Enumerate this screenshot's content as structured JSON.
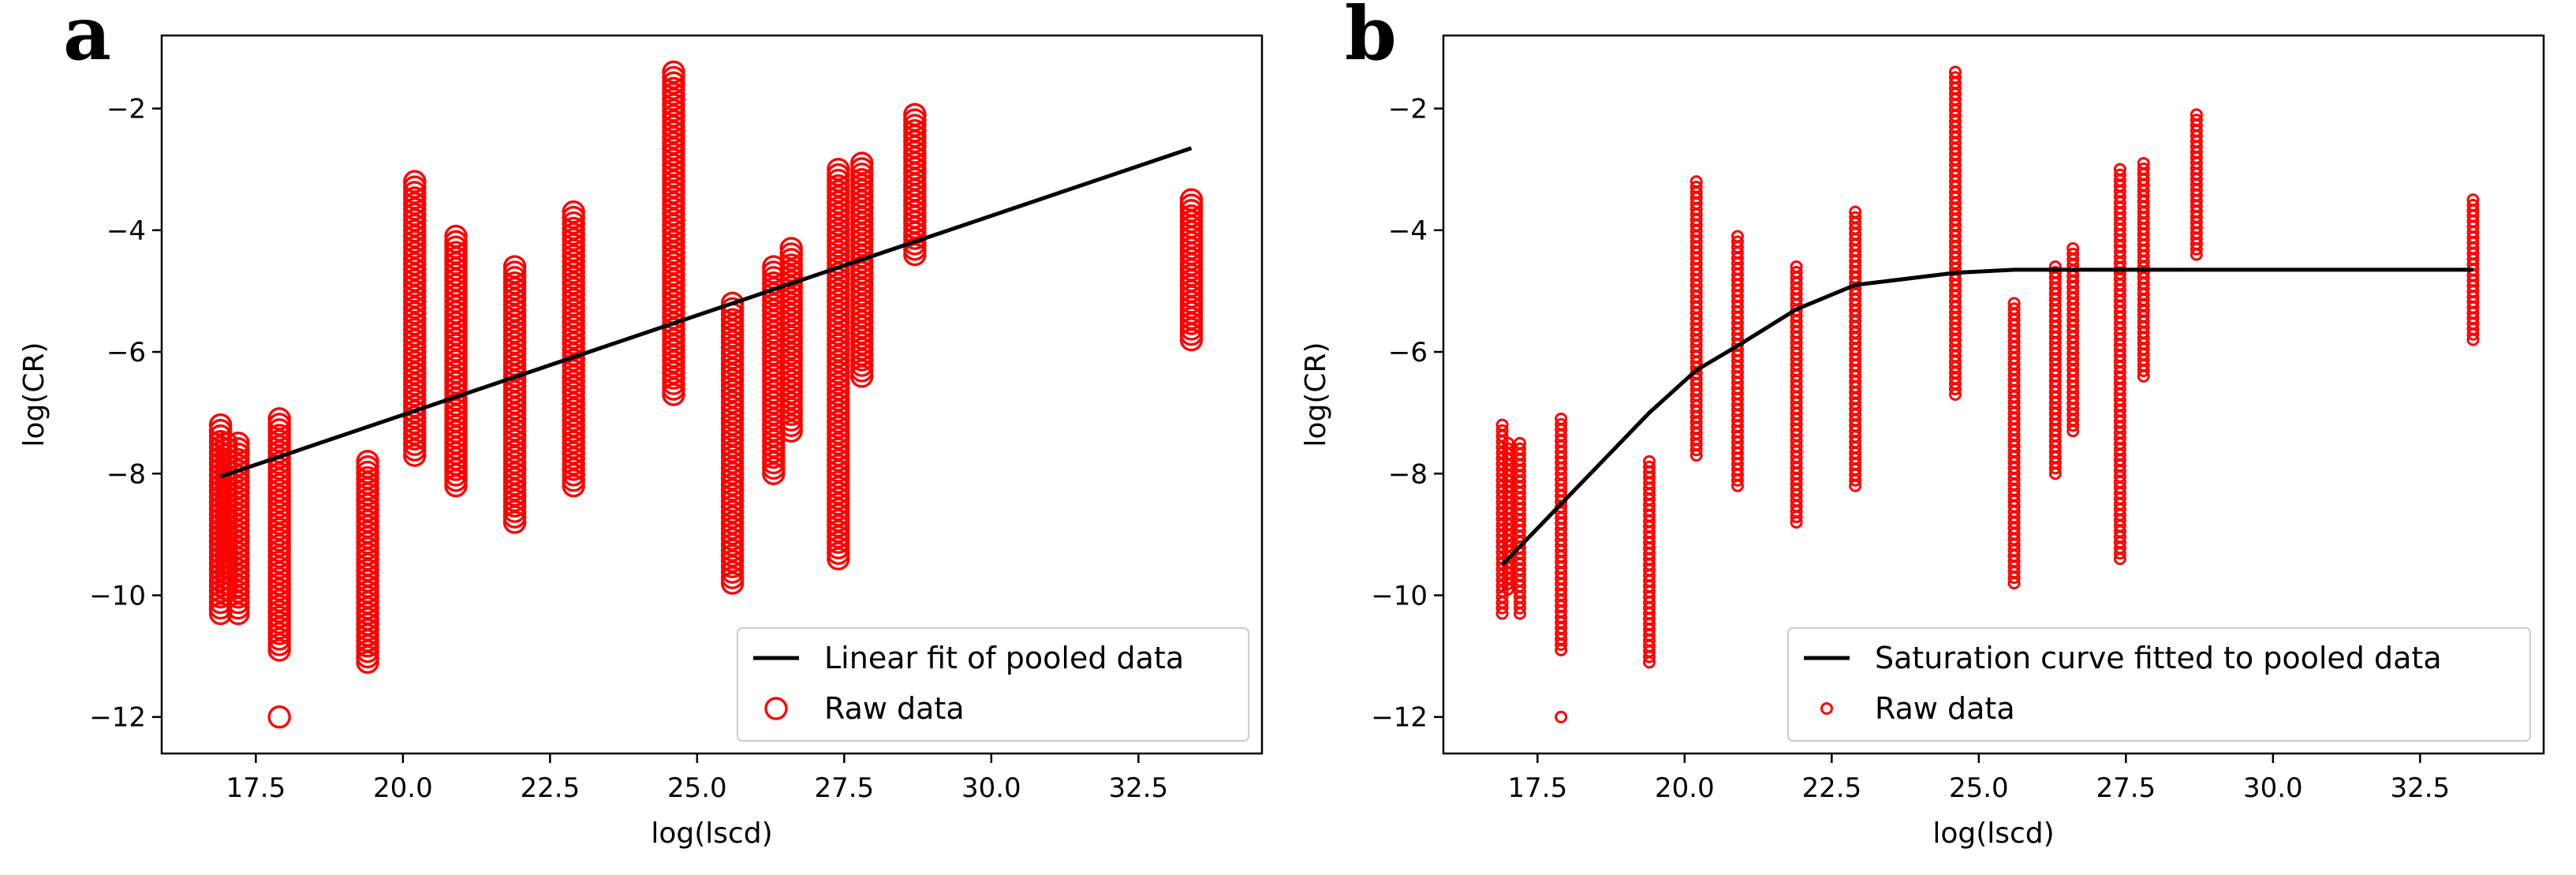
{
  "chart_data": [
    {
      "panel": "a",
      "type": "scatter",
      "xlabel": "log(lscd)",
      "ylabel": "log(CR)",
      "xlim": [
        15.9,
        34.6
      ],
      "ylim": [
        -12.6,
        -0.8
      ],
      "xticks": [
        17.5,
        20.0,
        22.5,
        25.0,
        27.5,
        30.0,
        32.5
      ],
      "xtick_labels": [
        "17.5",
        "20.0",
        "22.5",
        "25.0",
        "27.5",
        "30.0",
        "32.5"
      ],
      "yticks": [
        -2,
        -4,
        -6,
        -8,
        -10,
        -12
      ],
      "ytick_labels": [
        "−2",
        "−4",
        "−6",
        "−8",
        "−10",
        "−12"
      ],
      "legend_position": "lower right",
      "marker_size": "large",
      "series": [
        {
          "name": "Linear fit of pooled data",
          "kind": "line",
          "color": "#000000",
          "x": [
            16.9,
            33.4
          ],
          "y": [
            -8.05,
            -2.65
          ]
        },
        {
          "name": "Raw data",
          "kind": "scatter",
          "color": "#ff0000",
          "groups": [
            {
              "x": 16.9,
              "y_min": -10.3,
              "y_max": -7.2,
              "outliers": []
            },
            {
              "x": 17.0,
              "y_min": -9.9,
              "y_max": -7.5,
              "outliers": []
            },
            {
              "x": 17.2,
              "y_min": -10.3,
              "y_max": -7.5,
              "outliers": []
            },
            {
              "x": 17.9,
              "y_min": -10.9,
              "y_max": -7.1,
              "outliers": [
                -12.0
              ]
            },
            {
              "x": 19.4,
              "y_min": -11.1,
              "y_max": -7.8,
              "outliers": []
            },
            {
              "x": 20.2,
              "y_min": -7.7,
              "y_max": -3.2,
              "outliers": []
            },
            {
              "x": 20.9,
              "y_min": -8.2,
              "y_max": -4.1,
              "outliers": []
            },
            {
              "x": 21.9,
              "y_min": -8.8,
              "y_max": -4.6,
              "outliers": []
            },
            {
              "x": 22.9,
              "y_min": -8.2,
              "y_max": -3.7,
              "outliers": []
            },
            {
              "x": 24.6,
              "y_min": -6.7,
              "y_max": -1.4,
              "outliers": []
            },
            {
              "x": 25.6,
              "y_min": -9.8,
              "y_max": -5.2,
              "outliers": []
            },
            {
              "x": 26.3,
              "y_min": -8.0,
              "y_max": -4.6,
              "outliers": []
            },
            {
              "x": 26.6,
              "y_min": -7.3,
              "y_max": -4.3,
              "outliers": []
            },
            {
              "x": 27.4,
              "y_min": -9.4,
              "y_max": -3.0,
              "outliers": []
            },
            {
              "x": 27.8,
              "y_min": -6.4,
              "y_max": -2.9,
              "outliers": []
            },
            {
              "x": 28.7,
              "y_min": -4.4,
              "y_max": -2.1,
              "outliers": []
            },
            {
              "x": 33.4,
              "y_min": -5.8,
              "y_max": -3.5,
              "outliers": []
            }
          ]
        }
      ]
    },
    {
      "panel": "b",
      "type": "scatter",
      "xlabel": "log(lscd)",
      "ylabel": "log(CR)",
      "xlim": [
        15.9,
        34.6
      ],
      "ylim": [
        -12.6,
        -0.8
      ],
      "xticks": [
        17.5,
        20.0,
        22.5,
        25.0,
        27.5,
        30.0,
        32.5
      ],
      "xtick_labels": [
        "17.5",
        "20.0",
        "22.5",
        "25.0",
        "27.5",
        "30.0",
        "32.5"
      ],
      "yticks": [
        -2,
        -4,
        -6,
        -8,
        -10,
        -12
      ],
      "ytick_labels": [
        "−2",
        "−4",
        "−6",
        "−8",
        "−10",
        "−12"
      ],
      "legend_position": "lower right",
      "marker_size": "small",
      "series": [
        {
          "name": "Saturation curve fitted to pooled data",
          "kind": "line",
          "color": "#000000",
          "x": [
            16.9,
            17.9,
            19.4,
            20.2,
            20.9,
            21.9,
            22.9,
            24.6,
            25.6,
            26.3,
            27.4,
            28.7,
            33.4
          ],
          "y": [
            -9.5,
            -8.5,
            -7.0,
            -6.3,
            -5.9,
            -5.3,
            -4.9,
            -4.7,
            -4.65,
            -4.65,
            -4.65,
            -4.65,
            -4.65
          ]
        },
        {
          "name": "Raw data",
          "kind": "scatter",
          "color": "#ff0000",
          "groups": [
            {
              "x": 16.9,
              "y_min": -10.3,
              "y_max": -7.2,
              "outliers": []
            },
            {
              "x": 17.0,
              "y_min": -9.9,
              "y_max": -7.5,
              "outliers": []
            },
            {
              "x": 17.2,
              "y_min": -10.3,
              "y_max": -7.5,
              "outliers": []
            },
            {
              "x": 17.9,
              "y_min": -10.9,
              "y_max": -7.1,
              "outliers": [
                -12.0
              ]
            },
            {
              "x": 19.4,
              "y_min": -11.1,
              "y_max": -7.8,
              "outliers": []
            },
            {
              "x": 20.2,
              "y_min": -7.7,
              "y_max": -3.2,
              "outliers": []
            },
            {
              "x": 20.9,
              "y_min": -8.2,
              "y_max": -4.1,
              "outliers": []
            },
            {
              "x": 21.9,
              "y_min": -8.8,
              "y_max": -4.6,
              "outliers": []
            },
            {
              "x": 22.9,
              "y_min": -8.2,
              "y_max": -3.7,
              "outliers": []
            },
            {
              "x": 24.6,
              "y_min": -6.7,
              "y_max": -1.4,
              "outliers": []
            },
            {
              "x": 25.6,
              "y_min": -9.8,
              "y_max": -5.2,
              "outliers": []
            },
            {
              "x": 26.3,
              "y_min": -8.0,
              "y_max": -4.6,
              "outliers": []
            },
            {
              "x": 26.6,
              "y_min": -7.3,
              "y_max": -4.3,
              "outliers": []
            },
            {
              "x": 27.4,
              "y_min": -9.4,
              "y_max": -3.0,
              "outliers": []
            },
            {
              "x": 27.8,
              "y_min": -6.4,
              "y_max": -2.9,
              "outliers": []
            },
            {
              "x": 28.7,
              "y_min": -4.4,
              "y_max": -2.1,
              "outliers": []
            },
            {
              "x": 33.4,
              "y_min": -5.8,
              "y_max": -3.5,
              "outliers": []
            }
          ]
        }
      ]
    }
  ]
}
